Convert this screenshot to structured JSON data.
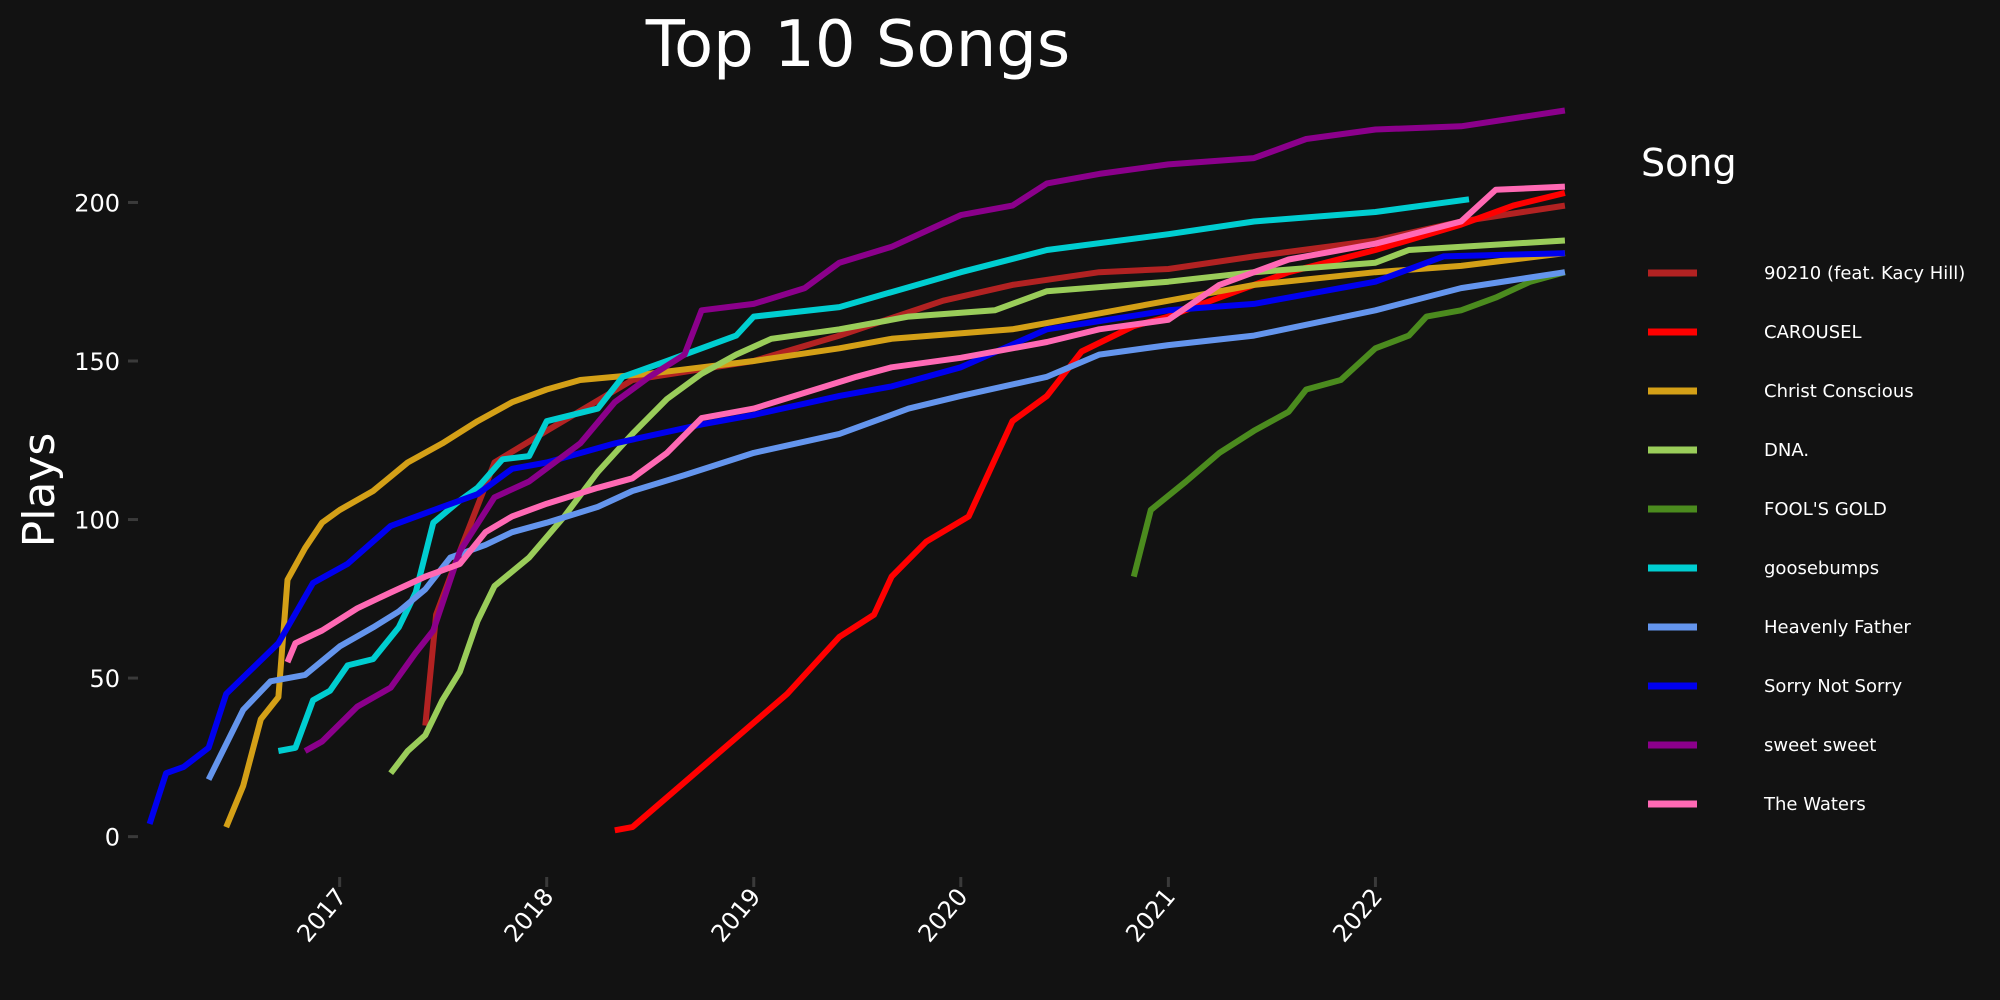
{
  "chart_data": {
    "type": "line",
    "title": "Top 10 Songs",
    "xlabel": "",
    "ylabel": "Plays",
    "x_type": "date",
    "xlim": [
      "2016-01-15",
      "2022-12-10"
    ],
    "ylim": [
      -8,
      226
    ],
    "y_ticks": [
      0,
      50,
      100,
      150,
      200
    ],
    "x_ticks": [
      "2017-01-01",
      "2018-01-01",
      "2019-01-01",
      "2020-01-01",
      "2021-01-01",
      "2022-01-01"
    ],
    "x_tick_labels": [
      "2017",
      "2018",
      "2019",
      "2020",
      "2021",
      "2022"
    ],
    "grid": false,
    "legend": {
      "title": "Song",
      "position": "right"
    },
    "series": [
      {
        "name": "90210 (feat. Kacy Hill)",
        "color": "#b22222",
        "points": [
          [
            "2017-06-01",
            35
          ],
          [
            "2017-06-20",
            70
          ],
          [
            "2017-08-01",
            90
          ],
          [
            "2017-10-01",
            118
          ],
          [
            "2018-01-01",
            128
          ],
          [
            "2018-06-01",
            144
          ],
          [
            "2019-01-01",
            150
          ],
          [
            "2019-06-01",
            158
          ],
          [
            "2019-12-01",
            169
          ],
          [
            "2020-04-01",
            174
          ],
          [
            "2020-09-01",
            178
          ],
          [
            "2021-01-01",
            179
          ],
          [
            "2021-06-01",
            183
          ],
          [
            "2022-01-01",
            188
          ],
          [
            "2022-06-01",
            194
          ],
          [
            "2022-12-01",
            199
          ]
        ]
      },
      {
        "name": "CAROUSEL",
        "color": "#ff0000",
        "points": [
          [
            "2018-05-01",
            2
          ],
          [
            "2018-06-01",
            3
          ],
          [
            "2019-03-01",
            45
          ],
          [
            "2019-06-01",
            63
          ],
          [
            "2019-08-01",
            70
          ],
          [
            "2019-09-01",
            82
          ],
          [
            "2019-11-01",
            93
          ],
          [
            "2020-01-15",
            101
          ],
          [
            "2020-04-01",
            131
          ],
          [
            "2020-06-01",
            139
          ],
          [
            "2020-08-01",
            153
          ],
          [
            "2020-11-01",
            161
          ],
          [
            "2021-01-01",
            164
          ],
          [
            "2021-04-01",
            170
          ],
          [
            "2021-08-01",
            178
          ],
          [
            "2022-01-01",
            185
          ],
          [
            "2022-06-01",
            193
          ],
          [
            "2022-09-01",
            199
          ],
          [
            "2022-12-01",
            203
          ]
        ]
      },
      {
        "name": "Christ Conscious",
        "color": "#d4a017",
        "points": [
          [
            "2016-06-15",
            3
          ],
          [
            "2016-07-15",
            16
          ],
          [
            "2016-08-15",
            37
          ],
          [
            "2016-09-15",
            44
          ],
          [
            "2016-10-01",
            81
          ],
          [
            "2016-11-01",
            91
          ],
          [
            "2016-12-01",
            99
          ],
          [
            "2017-01-01",
            103
          ],
          [
            "2017-03-01",
            109
          ],
          [
            "2017-05-01",
            118
          ],
          [
            "2017-07-01",
            124
          ],
          [
            "2017-09-01",
            131
          ],
          [
            "2017-11-01",
            137
          ],
          [
            "2018-01-01",
            141
          ],
          [
            "2018-03-01",
            144
          ],
          [
            "2018-07-01",
            146
          ],
          [
            "2019-01-01",
            150
          ],
          [
            "2019-06-01",
            154
          ],
          [
            "2019-09-01",
            157
          ],
          [
            "2020-04-01",
            160
          ],
          [
            "2020-09-01",
            165
          ],
          [
            "2021-01-01",
            169
          ],
          [
            "2021-06-01",
            174
          ],
          [
            "2022-01-01",
            178
          ],
          [
            "2022-06-01",
            180
          ],
          [
            "2022-12-01",
            184
          ]
        ]
      },
      {
        "name": "DNA.",
        "color": "#9acd5a",
        "points": [
          [
            "2017-04-01",
            20
          ],
          [
            "2017-05-01",
            27
          ],
          [
            "2017-06-01",
            32
          ],
          [
            "2017-07-01",
            43
          ],
          [
            "2017-08-01",
            52
          ],
          [
            "2017-09-01",
            68
          ],
          [
            "2017-10-01",
            79
          ],
          [
            "2017-12-01",
            88
          ],
          [
            "2018-02-01",
            101
          ],
          [
            "2018-04-01",
            115
          ],
          [
            "2018-06-01",
            127
          ],
          [
            "2018-08-01",
            138
          ],
          [
            "2018-10-01",
            146
          ],
          [
            "2018-12-01",
            152
          ],
          [
            "2019-02-01",
            157
          ],
          [
            "2019-06-01",
            160
          ],
          [
            "2019-10-01",
            164
          ],
          [
            "2020-03-01",
            166
          ],
          [
            "2020-06-01",
            172
          ],
          [
            "2021-01-01",
            175
          ],
          [
            "2021-06-01",
            178
          ],
          [
            "2022-01-01",
            181
          ],
          [
            "2022-03-01",
            185
          ],
          [
            "2022-12-01",
            188
          ]
        ]
      },
      {
        "name": "FOOL'S GOLD",
        "color": "#4b8b1e",
        "points": [
          [
            "2020-11-01",
            82
          ],
          [
            "2020-12-01",
            103
          ],
          [
            "2021-02-01",
            112
          ],
          [
            "2021-04-01",
            121
          ],
          [
            "2021-06-01",
            128
          ],
          [
            "2021-08-01",
            134
          ],
          [
            "2021-09-01",
            141
          ],
          [
            "2021-11-01",
            144
          ],
          [
            "2022-01-01",
            154
          ],
          [
            "2022-03-01",
            158
          ],
          [
            "2022-04-01",
            164
          ],
          [
            "2022-06-01",
            166
          ],
          [
            "2022-08-01",
            170
          ],
          [
            "2022-10-01",
            175
          ],
          [
            "2022-12-01",
            178
          ]
        ]
      },
      {
        "name": "goosebumps",
        "color": "#00ced1",
        "points": [
          [
            "2016-09-15",
            27
          ],
          [
            "2016-10-15",
            28
          ],
          [
            "2016-11-15",
            43
          ],
          [
            "2016-12-15",
            46
          ],
          [
            "2017-01-15",
            54
          ],
          [
            "2017-03-01",
            56
          ],
          [
            "2017-04-15",
            66
          ],
          [
            "2017-05-15",
            77
          ],
          [
            "2017-06-15",
            99
          ],
          [
            "2017-08-01",
            106
          ],
          [
            "2017-09-01",
            110
          ],
          [
            "2017-10-15",
            119
          ],
          [
            "2017-12-01",
            120
          ],
          [
            "2018-01-01",
            131
          ],
          [
            "2018-04-01",
            135
          ],
          [
            "2018-05-15",
            145
          ],
          [
            "2018-08-01",
            150
          ],
          [
            "2018-12-01",
            158
          ],
          [
            "2019-01-01",
            164
          ],
          [
            "2019-06-01",
            167
          ],
          [
            "2020-01-01",
            178
          ],
          [
            "2020-06-01",
            185
          ],
          [
            "2021-01-01",
            190
          ],
          [
            "2021-06-01",
            194
          ],
          [
            "2022-01-01",
            197
          ],
          [
            "2022-06-15",
            201
          ]
        ]
      },
      {
        "name": "Heavenly Father",
        "color": "#6495ed",
        "points": [
          [
            "2016-05-15",
            18
          ],
          [
            "2016-07-15",
            40
          ],
          [
            "2016-09-01",
            49
          ],
          [
            "2016-11-01",
            51
          ],
          [
            "2017-01-01",
            60
          ],
          [
            "2017-03-01",
            66
          ],
          [
            "2017-04-15",
            71
          ],
          [
            "2017-06-01",
            78
          ],
          [
            "2017-07-15",
            88
          ],
          [
            "2017-09-15",
            92
          ],
          [
            "2017-11-01",
            96
          ],
          [
            "2018-01-01",
            99
          ],
          [
            "2018-04-01",
            104
          ],
          [
            "2018-06-01",
            109
          ],
          [
            "2018-09-01",
            114
          ],
          [
            "2019-01-01",
            121
          ],
          [
            "2019-06-01",
            127
          ],
          [
            "2019-10-01",
            135
          ],
          [
            "2020-01-01",
            139
          ],
          [
            "2020-06-01",
            145
          ],
          [
            "2020-09-01",
            152
          ],
          [
            "2021-01-01",
            155
          ],
          [
            "2021-06-01",
            158
          ],
          [
            "2022-01-01",
            166
          ],
          [
            "2022-06-01",
            173
          ],
          [
            "2022-12-01",
            178
          ]
        ]
      },
      {
        "name": "Sorry Not Sorry",
        "color": "#0000ee",
        "points": [
          [
            "2016-02-01",
            4
          ],
          [
            "2016-03-01",
            20
          ],
          [
            "2016-04-01",
            22
          ],
          [
            "2016-05-15",
            28
          ],
          [
            "2016-06-15",
            45
          ],
          [
            "2016-09-15",
            61
          ],
          [
            "2016-11-15",
            80
          ],
          [
            "2017-01-15",
            86
          ],
          [
            "2017-04-01",
            98
          ],
          [
            "2017-07-01",
            104
          ],
          [
            "2017-09-01",
            108
          ],
          [
            "2017-11-01",
            116
          ],
          [
            "2018-01-01",
            118
          ],
          [
            "2018-05-01",
            124
          ],
          [
            "2018-10-01",
            130
          ],
          [
            "2019-01-01",
            133
          ],
          [
            "2019-06-01",
            139
          ],
          [
            "2019-09-01",
            142
          ],
          [
            "2020-01-01",
            148
          ],
          [
            "2020-06-01",
            160
          ],
          [
            "2021-01-01",
            166
          ],
          [
            "2021-06-01",
            168
          ],
          [
            "2022-01-01",
            175
          ],
          [
            "2022-05-01",
            183
          ],
          [
            "2022-12-01",
            184
          ]
        ]
      },
      {
        "name": "sweet sweet",
        "color": "#8b008b",
        "points": [
          [
            "2016-11-01",
            27
          ],
          [
            "2016-12-01",
            30
          ],
          [
            "2017-02-01",
            41
          ],
          [
            "2017-04-01",
            47
          ],
          [
            "2017-05-15",
            58
          ],
          [
            "2017-06-15",
            65
          ],
          [
            "2017-08-01",
            90
          ],
          [
            "2017-10-01",
            107
          ],
          [
            "2017-12-01",
            112
          ],
          [
            "2018-03-01",
            124
          ],
          [
            "2018-05-01",
            137
          ],
          [
            "2018-07-01",
            145
          ],
          [
            "2018-09-01",
            152
          ],
          [
            "2018-10-01",
            166
          ],
          [
            "2019-01-01",
            168
          ],
          [
            "2019-04-01",
            173
          ],
          [
            "2019-06-01",
            181
          ],
          [
            "2019-09-01",
            186
          ],
          [
            "2020-01-01",
            196
          ],
          [
            "2020-04-01",
            199
          ],
          [
            "2020-06-01",
            206
          ],
          [
            "2020-09-01",
            209
          ],
          [
            "2021-01-01",
            212
          ],
          [
            "2021-06-01",
            214
          ],
          [
            "2021-09-01",
            220
          ],
          [
            "2022-01-01",
            223
          ],
          [
            "2022-06-01",
            224
          ],
          [
            "2022-12-01",
            229
          ]
        ]
      },
      {
        "name": "The Waters",
        "color": "#ff69b4",
        "points": [
          [
            "2016-10-01",
            55
          ],
          [
            "2016-10-15",
            61
          ],
          [
            "2016-12-01",
            65
          ],
          [
            "2017-02-01",
            72
          ],
          [
            "2017-04-01",
            77
          ],
          [
            "2017-06-01",
            82
          ],
          [
            "2017-08-01",
            86
          ],
          [
            "2017-09-15",
            96
          ],
          [
            "2017-11-01",
            101
          ],
          [
            "2018-01-01",
            105
          ],
          [
            "2018-04-01",
            110
          ],
          [
            "2018-06-01",
            113
          ],
          [
            "2018-08-01",
            121
          ],
          [
            "2018-10-01",
            132
          ],
          [
            "2019-01-01",
            135
          ],
          [
            "2019-04-01",
            140
          ],
          [
            "2019-07-01",
            145
          ],
          [
            "2019-09-01",
            148
          ],
          [
            "2020-01-01",
            151
          ],
          [
            "2020-06-01",
            156
          ],
          [
            "2020-09-01",
            160
          ],
          [
            "2021-01-01",
            163
          ],
          [
            "2021-04-01",
            174
          ],
          [
            "2021-08-01",
            182
          ],
          [
            "2022-01-01",
            187
          ],
          [
            "2022-06-01",
            194
          ],
          [
            "2022-08-01",
            204
          ],
          [
            "2022-12-01",
            205
          ]
        ]
      }
    ]
  }
}
